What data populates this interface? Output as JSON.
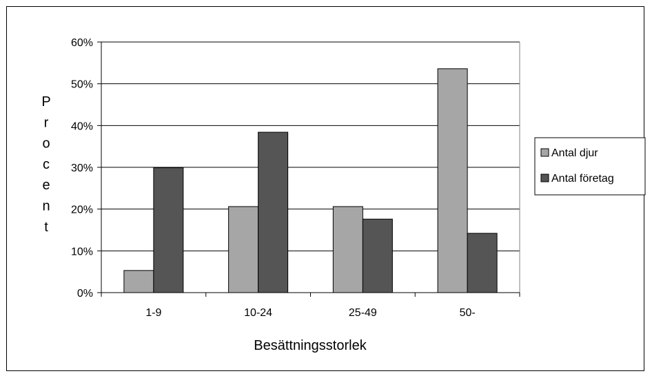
{
  "chart_data": {
    "type": "bar",
    "categories": [
      "1-9",
      "10-24",
      "25-49",
      "50-"
    ],
    "series": [
      {
        "name": "Antal djur",
        "values": [
          5.3,
          20.6,
          20.6,
          53.6
        ],
        "color": "#a6a6a6"
      },
      {
        "name": "Antal företag",
        "values": [
          29.9,
          38.4,
          17.6,
          14.2
        ],
        "color": "#555555"
      }
    ],
    "y_ticks": [
      "0%",
      "10%",
      "20%",
      "30%",
      "40%",
      "50%",
      "60%"
    ],
    "ylim": [
      0,
      60
    ],
    "xlabel": "Besättningsstorlek",
    "ylabel": "Procent",
    "ylabel_letters": [
      "P",
      "r",
      "o",
      "c",
      "e",
      "n",
      "t"
    ],
    "grid": true,
    "legend_position": "right"
  }
}
